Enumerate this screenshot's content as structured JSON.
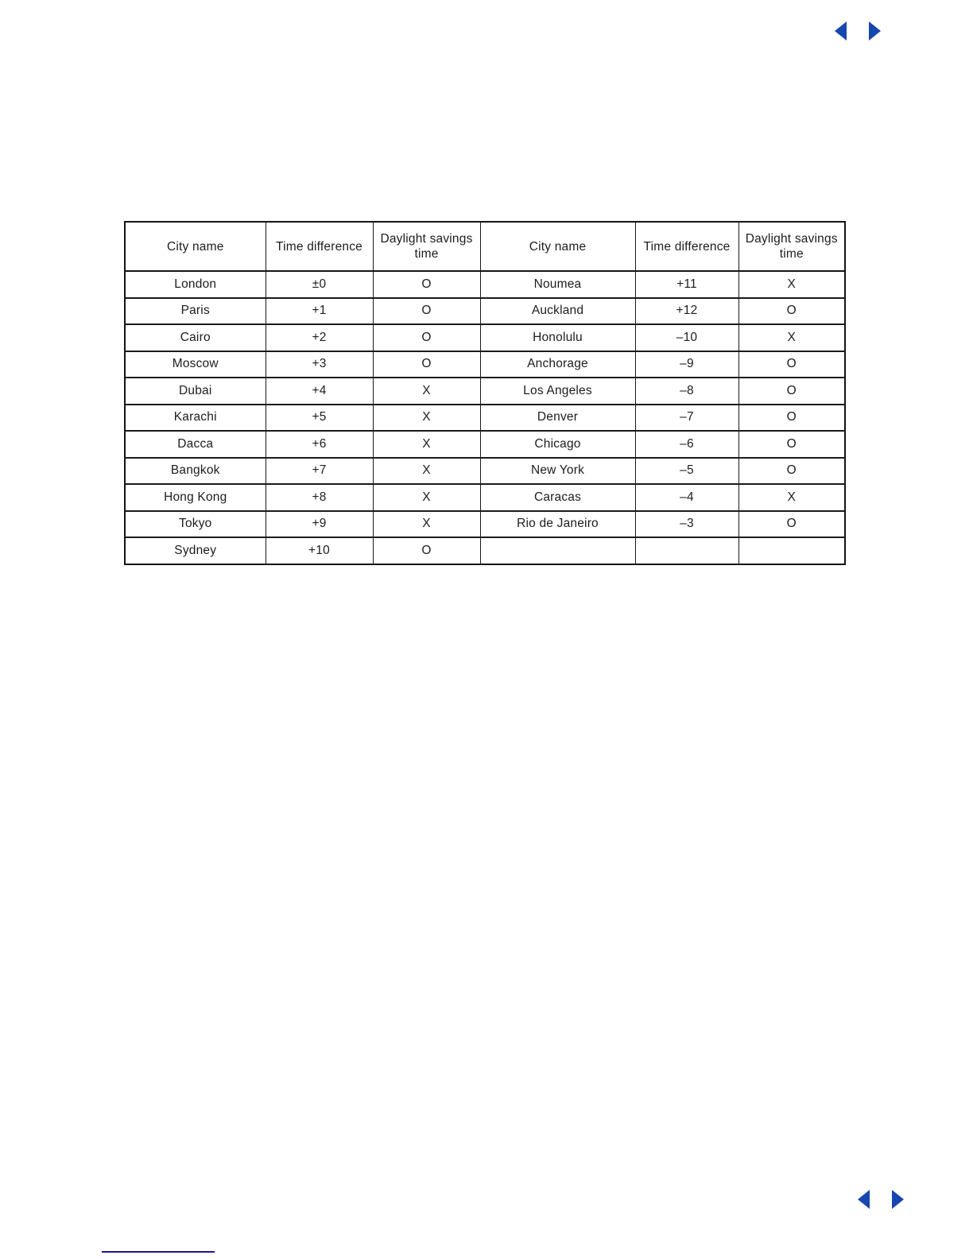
{
  "nav": {
    "prev_icon": "left-triangle",
    "next_icon": "right-triangle",
    "arrow_color": "#1647b0"
  },
  "table": {
    "headers": [
      "City name",
      "Time difference",
      "Daylight savings time",
      "City name",
      "Time difference",
      "Daylight savings time"
    ],
    "rows": [
      [
        "London",
        "±0",
        "O",
        "Noumea",
        "+11",
        "X"
      ],
      [
        "Paris",
        "+1",
        "O",
        "Auckland",
        "+12",
        "O"
      ],
      [
        "Cairo",
        "+2",
        "O",
        "Honolulu",
        "–10",
        "X"
      ],
      [
        "Moscow",
        "+3",
        "O",
        "Anchorage",
        "–9",
        "O"
      ],
      [
        "Dubai",
        "+4",
        "X",
        "Los Angeles",
        "–8",
        "O"
      ],
      [
        "Karachi",
        "+5",
        "X",
        "Denver",
        "–7",
        "O"
      ],
      [
        "Dacca",
        "+6",
        "X",
        "Chicago",
        "–6",
        "O"
      ],
      [
        "Bangkok",
        "+7",
        "X",
        "New York",
        "–5",
        "O"
      ],
      [
        "Hong Kong",
        "+8",
        "X",
        "Caracas",
        "–4",
        "X"
      ],
      [
        "Tokyo",
        "+9",
        "X",
        "Rio de Janeiro",
        "–3",
        "O"
      ],
      [
        "Sydney",
        "+10",
        "O",
        "",
        "",
        ""
      ]
    ]
  },
  "footer": {
    "rule_color": "#1a1690"
  }
}
